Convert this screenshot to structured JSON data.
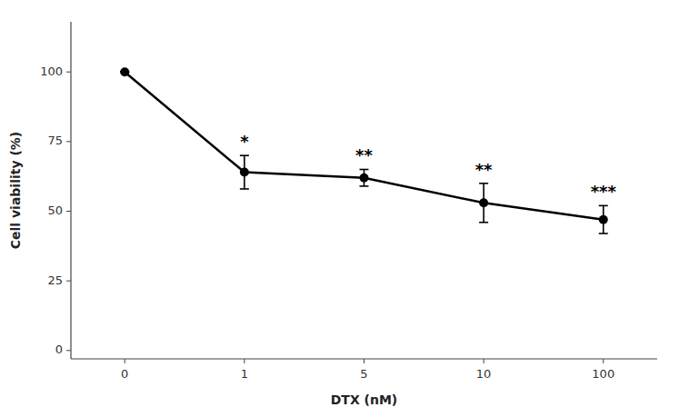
{
  "chart_data": {
    "type": "line",
    "categories": [
      "0",
      "1",
      "5",
      "10",
      "100"
    ],
    "values": [
      100,
      64,
      62,
      53,
      47
    ],
    "errors": [
      0,
      6,
      3,
      7,
      5
    ],
    "annotations": [
      {
        "text": "*",
        "x": "1",
        "y": 73
      },
      {
        "text": "**",
        "x": "5",
        "y": 68
      },
      {
        "text": "**",
        "x": "10",
        "y": 63
      },
      {
        "text": "***",
        "x": "100",
        "y": 55
      }
    ],
    "xlabel": "DTX (nM)",
    "ylabel": "Cell viability (%)",
    "ylim": [
      -3,
      118
    ],
    "yticks": [
      0,
      25,
      50,
      75,
      100
    ],
    "color": "#000000",
    "marker": "circle",
    "line_style": "solid",
    "grid": false
  }
}
